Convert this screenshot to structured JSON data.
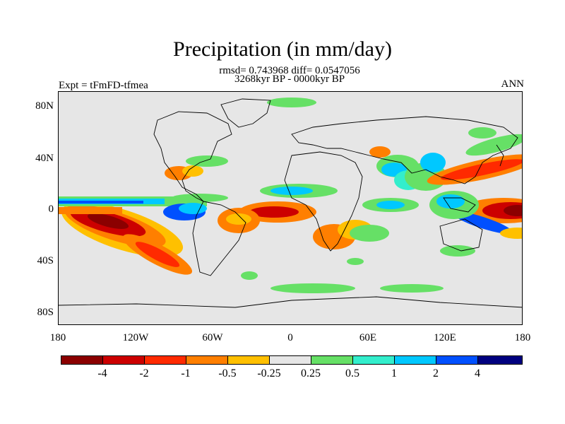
{
  "title": "Precipitation (in mm/day)",
  "stats_line": "rmsd= 0.743968 diff= 0.0547056",
  "period_line": "3268kyr BP - 0000kyr BP",
  "experiment_label": "Expt = tFmFD-tfmea",
  "season_label": "ANN",
  "chart_data": {
    "type": "contour-map",
    "variable": "Precipitation difference",
    "units": "mm/day",
    "projection": "cylindrical equidistant",
    "lon_range": [
      -180,
      180
    ],
    "lat_range": [
      -90,
      90
    ],
    "y_ticks": [
      "80N",
      "40N",
      "0",
      "40S",
      "80S"
    ],
    "x_ticks": [
      "180",
      "120W",
      "60W",
      "0",
      "60E",
      "120E",
      "180"
    ],
    "colorbar": {
      "levels": [
        "-4",
        "-2",
        "-1",
        "-0.5",
        "-0.25",
        "0.25",
        "0.5",
        "1",
        "2",
        "4"
      ],
      "colors": [
        "#8b0000",
        "#cc0000",
        "#ff2a00",
        "#ff7f00",
        "#ffc000",
        "#e6e6e6",
        "#66e066",
        "#33eecc",
        "#00c8ff",
        "#0050ff",
        "#00007f"
      ]
    }
  }
}
